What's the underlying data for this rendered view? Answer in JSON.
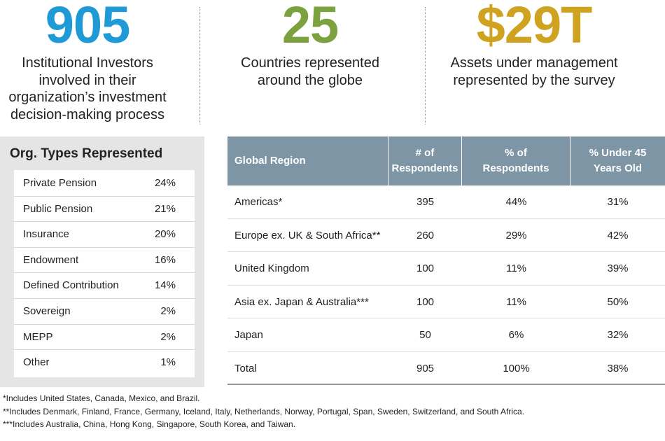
{
  "stats": [
    {
      "number": "905",
      "color": "#1e9ad6",
      "lines": [
        "Institutional Investors",
        "involved in their",
        "organization’s investment",
        "decision-making process"
      ]
    },
    {
      "number": "25",
      "color": "#7ba23f",
      "lines": [
        "Countries represented",
        "around the globe"
      ]
    },
    {
      "number": "$29T",
      "color": "#cfa320",
      "lines": [
        "Assets under management",
        "represented by the survey"
      ]
    }
  ],
  "org_types": {
    "title": "Org. Types Represented",
    "rows": [
      [
        "Private Pension",
        "24%"
      ],
      [
        "Public Pension",
        "21%"
      ],
      [
        "Insurance",
        "20%"
      ],
      [
        "Endowment",
        "16%"
      ],
      [
        "Defined Contribution",
        "14%"
      ],
      [
        "Sovereign",
        "2%"
      ],
      [
        "MEPP",
        "2%"
      ],
      [
        "Other",
        "1%"
      ]
    ]
  },
  "regions": {
    "headers": [
      [
        "Global Region"
      ],
      [
        "# of",
        "Respondents"
      ],
      [
        "% of",
        "Respondents"
      ],
      [
        "% Under 45",
        "Years Old"
      ]
    ],
    "rows": [
      [
        "Americas*",
        "395",
        "44%",
        "31%"
      ],
      [
        "Europe ex. UK & South Africa**",
        "260",
        "29%",
        "42%"
      ],
      [
        "United Kingdom",
        "100",
        "11%",
        "39%"
      ],
      [
        "Asia ex. Japan & Australia***",
        "100",
        "11%",
        "50%"
      ],
      [
        "Japan",
        "50",
        "6%",
        "32%"
      ],
      [
        "Total",
        "905",
        "100%",
        "38%"
      ]
    ]
  },
  "footnotes": [
    "*Includes United States, Canada, Mexico, and Brazil.",
    "**Includes Denmark, Finland, France, Germany, Iceland, Italy, Netherlands, Norway, Portugal, Span, Sweden, Switzerland, and South Africa.",
    "***Includes Australia, China, Hong Kong, Singapore, South Korea, and Taiwan."
  ]
}
